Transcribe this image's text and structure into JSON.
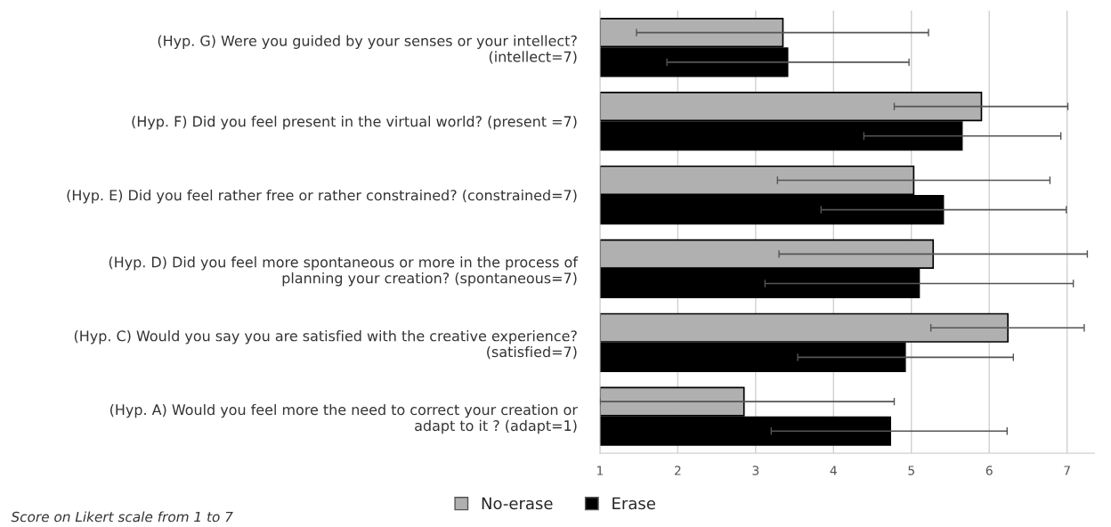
{
  "chart_data": {
    "type": "bar",
    "orientation": "horizontal",
    "categories": [
      "(Hyp. G) Were you guided by your senses or your intellect?\n(intellect=7)",
      "(Hyp. F) Did you feel present in the virtual world? (present =7)",
      "(Hyp. E) Did you feel rather free or rather constrained? (constrained=7)",
      "(Hyp. D) Did you feel more spontaneous or more in the process of\nplanning your creation? (spontaneous=7)",
      "(Hyp. C) Would you say you are satisfied with the creative experience?\n(satisfied=7)",
      "(Hyp. A) Would you feel more the need to correct your creation or\nadapt to it ? (adapt=1)"
    ],
    "series": [
      {
        "name": "No-erase",
        "color": "#b0b0b0",
        "values": [
          3.35,
          5.9,
          5.03,
          5.28,
          6.24,
          2.85
        ],
        "errors": [
          [
            1.47,
            5.22
          ],
          [
            4.78,
            7.01
          ],
          [
            3.28,
            6.78
          ],
          [
            3.3,
            7.26
          ],
          [
            5.25,
            7.22
          ],
          [
            1.0,
            4.78
          ]
        ]
      },
      {
        "name": "Erase",
        "color": "#000000",
        "values": [
          3.41,
          5.65,
          5.41,
          5.1,
          4.92,
          4.73
        ],
        "errors": [
          [
            1.86,
            4.97
          ],
          [
            4.39,
            6.92
          ],
          [
            3.84,
            6.99
          ],
          [
            3.12,
            7.08
          ],
          [
            3.54,
            6.31
          ],
          [
            3.2,
            6.23
          ]
        ]
      }
    ],
    "xlim": [
      1,
      7.35
    ],
    "xticks": [
      1,
      2,
      3,
      4,
      5,
      6,
      7
    ],
    "grid": "x",
    "legend": "bottom",
    "annotations": [
      "Score on Likert scale from 1 to 7"
    ]
  }
}
